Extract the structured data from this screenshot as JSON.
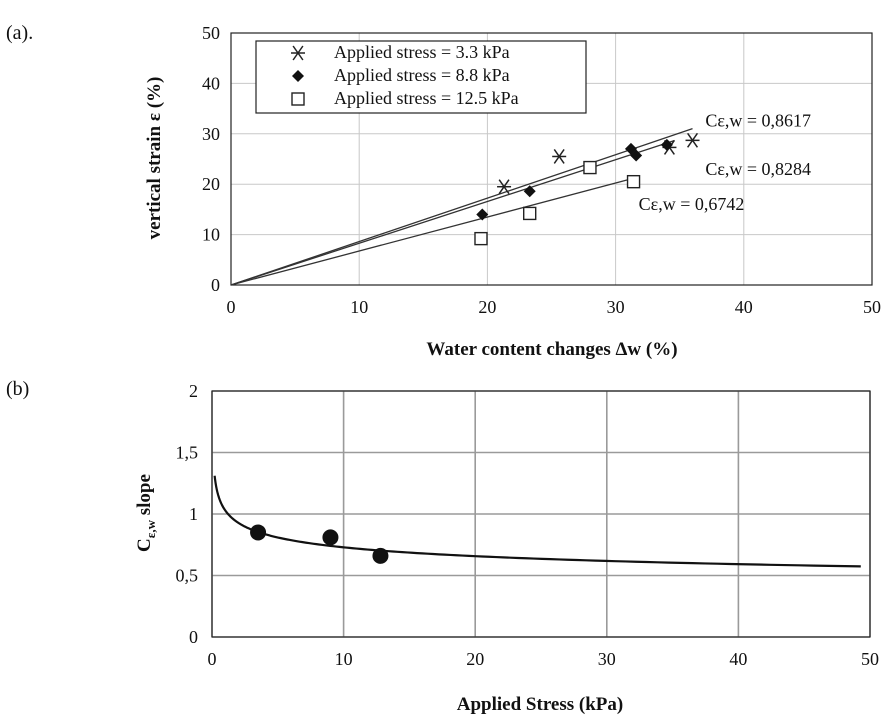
{
  "chart_data": [
    {
      "type": "scatter",
      "panel_label": "(a).",
      "xlabel": "Water content changes  Δw (%)",
      "ylabel": "vertical strain ε (%)",
      "xlim": [
        0,
        50
      ],
      "ylim": [
        0,
        50
      ],
      "xticks": [
        "0",
        "10",
        "20",
        "30",
        "40",
        "50"
      ],
      "yticks": [
        "0",
        "10",
        "20",
        "30",
        "40",
        "50"
      ],
      "grid": true,
      "legend_position": "top-left",
      "series": [
        {
          "name": "Applied stress = 3.3 kPa",
          "marker": "asterisk",
          "points": [
            [
              21.3,
              19.5
            ],
            [
              25.6,
              25.5
            ],
            [
              34.2,
              27.3
            ],
            [
              36.0,
              28.7
            ]
          ],
          "fit_slope": 0.8617,
          "fit_x_end": 36.0
        },
        {
          "name": "Applied stress = 8.8 kPa",
          "marker": "filled-diamond",
          "points": [
            [
              19.6,
              14.0
            ],
            [
              23.3,
              18.6
            ],
            [
              31.2,
              27.0
            ],
            [
              31.6,
              25.7
            ],
            [
              34.0,
              27.8
            ]
          ],
          "fit_slope": 0.8284,
          "fit_x_end": 34.6
        },
        {
          "name": "Applied stress = 12.5 kPa",
          "marker": "open-square",
          "points": [
            [
              19.5,
              9.2
            ],
            [
              23.3,
              14.2
            ],
            [
              28.0,
              23.3
            ],
            [
              31.4,
              20.5
            ]
          ],
          "fit_slope": 0.6742,
          "fit_x_end": 31.4
        }
      ],
      "annotations": [
        {
          "text": "Cε,w = 0,8617",
          "x": 37.0,
          "y": 32.6
        },
        {
          "text": "Cε,w = 0,8284",
          "x": 37.0,
          "y": 23.0
        },
        {
          "text": "Cε,w = 0,6742",
          "x": 31.8,
          "y": 16.1
        }
      ]
    },
    {
      "type": "scatter",
      "panel_label": "(b)",
      "xlabel": "Applied Stress (kPa)",
      "ylabel_main": "C",
      "ylabel_sub": "ε,w",
      "ylabel_rest": " slope",
      "xlim": [
        0,
        50
      ],
      "ylim": [
        0,
        2
      ],
      "xticks": [
        "0",
        "10",
        "20",
        "30",
        "40",
        "50"
      ],
      "yticks": [
        "0",
        "0,5",
        "1",
        "1,5",
        "2"
      ],
      "grid": true,
      "points": [
        [
          3.5,
          0.85
        ],
        [
          9.0,
          0.81
        ],
        [
          12.8,
          0.66
        ]
      ],
      "trend": {
        "a": 1.03,
        "b": -0.15,
        "x_start": 0.2,
        "x_end": 49.3
      }
    }
  ]
}
